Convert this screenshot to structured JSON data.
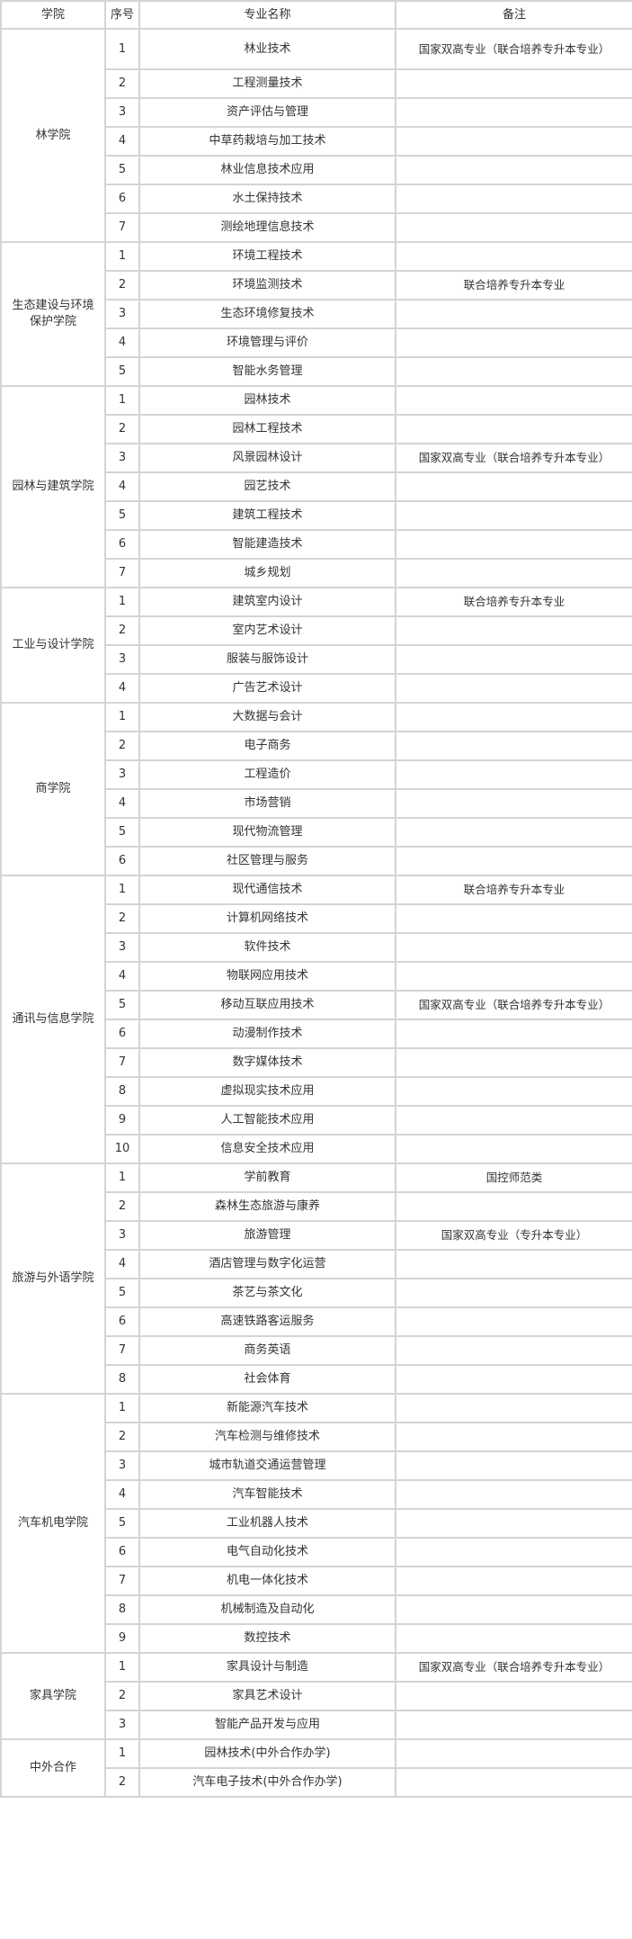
{
  "header": {
    "college": "学院",
    "no": "序号",
    "major": "专业名称",
    "note": "备注"
  },
  "colleges": [
    {
      "name": "林学院",
      "majors": [
        {
          "no": "1",
          "name": "林业技术",
          "note": "国家双高专业（联合培养专升本专业）"
        },
        {
          "no": "2",
          "name": "工程测量技术",
          "note": ""
        },
        {
          "no": "3",
          "name": "资产评估与管理",
          "note": ""
        },
        {
          "no": "4",
          "name": "中草药栽培与加工技术",
          "note": ""
        },
        {
          "no": "5",
          "name": "林业信息技术应用",
          "note": ""
        },
        {
          "no": "6",
          "name": "水土保持技术",
          "note": ""
        },
        {
          "no": "7",
          "name": "测绘地理信息技术",
          "note": ""
        }
      ]
    },
    {
      "name": "生态建设与环境保护学院",
      "majors": [
        {
          "no": "1",
          "name": "环境工程技术",
          "note": ""
        },
        {
          "no": "2",
          "name": "环境监测技术",
          "note": "联合培养专升本专业"
        },
        {
          "no": "3",
          "name": "生态环境修复技术",
          "note": ""
        },
        {
          "no": "4",
          "name": "环境管理与评价",
          "note": ""
        },
        {
          "no": "5",
          "name": "智能水务管理",
          "note": ""
        }
      ]
    },
    {
      "name": "园林与建筑学院",
      "majors": [
        {
          "no": "1",
          "name": "园林技术",
          "note": ""
        },
        {
          "no": "2",
          "name": "园林工程技术",
          "note": ""
        },
        {
          "no": "3",
          "name": "风景园林设计",
          "note": "国家双高专业（联合培养专升本专业）"
        },
        {
          "no": "4",
          "name": "园艺技术",
          "note": ""
        },
        {
          "no": "5",
          "name": "建筑工程技术",
          "note": ""
        },
        {
          "no": "6",
          "name": "智能建造技术",
          "note": ""
        },
        {
          "no": "7",
          "name": "城乡规划",
          "note": ""
        }
      ]
    },
    {
      "name": "工业与设计学院",
      "majors": [
        {
          "no": "1",
          "name": "建筑室内设计",
          "note": "联合培养专升本专业"
        },
        {
          "no": "2",
          "name": "室内艺术设计",
          "note": ""
        },
        {
          "no": "3",
          "name": "服装与服饰设计",
          "note": ""
        },
        {
          "no": "4",
          "name": "广告艺术设计",
          "note": ""
        }
      ]
    },
    {
      "name": "商学院",
      "majors": [
        {
          "no": "1",
          "name": "大数据与会计",
          "note": ""
        },
        {
          "no": "2",
          "name": "电子商务",
          "note": ""
        },
        {
          "no": "3",
          "name": "工程造价",
          "note": ""
        },
        {
          "no": "4",
          "name": "市场营销",
          "note": ""
        },
        {
          "no": "5",
          "name": "现代物流管理",
          "note": ""
        },
        {
          "no": "6",
          "name": "社区管理与服务",
          "note": ""
        }
      ]
    },
    {
      "name": "通讯与信息学院",
      "majors": [
        {
          "no": "1",
          "name": "现代通信技术",
          "note": "联合培养专升本专业"
        },
        {
          "no": "2",
          "name": "计算机网络技术",
          "note": ""
        },
        {
          "no": "3",
          "name": "软件技术",
          "note": ""
        },
        {
          "no": "4",
          "name": "物联网应用技术",
          "note": ""
        },
        {
          "no": "5",
          "name": "移动互联应用技术",
          "note": "国家双高专业（联合培养专升本专业）"
        },
        {
          "no": "6",
          "name": "动漫制作技术",
          "note": ""
        },
        {
          "no": "7",
          "name": "数字媒体技术",
          "note": ""
        },
        {
          "no": "8",
          "name": "虚拟现实技术应用",
          "note": ""
        },
        {
          "no": "9",
          "name": "人工智能技术应用",
          "note": ""
        },
        {
          "no": "10",
          "name": "信息安全技术应用",
          "note": ""
        }
      ]
    },
    {
      "name": "旅游与外语学院",
      "majors": [
        {
          "no": "1",
          "name": "学前教育",
          "note": "国控师范类"
        },
        {
          "no": "2",
          "name": "森林生态旅游与康养",
          "note": ""
        },
        {
          "no": "3",
          "name": "旅游管理",
          "note": "国家双高专业（专升本专业）"
        },
        {
          "no": "4",
          "name": "酒店管理与数字化运营",
          "note": ""
        },
        {
          "no": "5",
          "name": "茶艺与茶文化",
          "note": ""
        },
        {
          "no": "6",
          "name": "高速铁路客运服务",
          "note": ""
        },
        {
          "no": "7",
          "name": "商务英语",
          "note": ""
        },
        {
          "no": "8",
          "name": "社会体育",
          "note": ""
        }
      ]
    },
    {
      "name": "汽车机电学院",
      "majors": [
        {
          "no": "1",
          "name": "新能源汽车技术",
          "note": ""
        },
        {
          "no": "2",
          "name": "汽车检测与维修技术",
          "note": ""
        },
        {
          "no": "3",
          "name": "城市轨道交通运营管理",
          "note": ""
        },
        {
          "no": "4",
          "name": "汽车智能技术",
          "note": ""
        },
        {
          "no": "5",
          "name": "工业机器人技术",
          "note": ""
        },
        {
          "no": "6",
          "name": "电气自动化技术",
          "note": ""
        },
        {
          "no": "7",
          "name": "机电一体化技术",
          "note": ""
        },
        {
          "no": "8",
          "name": "机械制造及自动化",
          "note": ""
        },
        {
          "no": "9",
          "name": "数控技术",
          "note": ""
        }
      ]
    },
    {
      "name": "家具学院",
      "majors": [
        {
          "no": "1",
          "name": "家具设计与制造",
          "note": "国家双高专业（联合培养专升本专业）"
        },
        {
          "no": "2",
          "name": "家具艺术设计",
          "note": ""
        },
        {
          "no": "3",
          "name": "智能产品开发与应用",
          "note": ""
        }
      ]
    },
    {
      "name": "中外合作",
      "majors": [
        {
          "no": "1",
          "name": "园林技术(中外合作办学)",
          "note": ""
        },
        {
          "no": "2",
          "name": "汽车电子技术(中外合作办学)",
          "note": ""
        }
      ]
    }
  ]
}
